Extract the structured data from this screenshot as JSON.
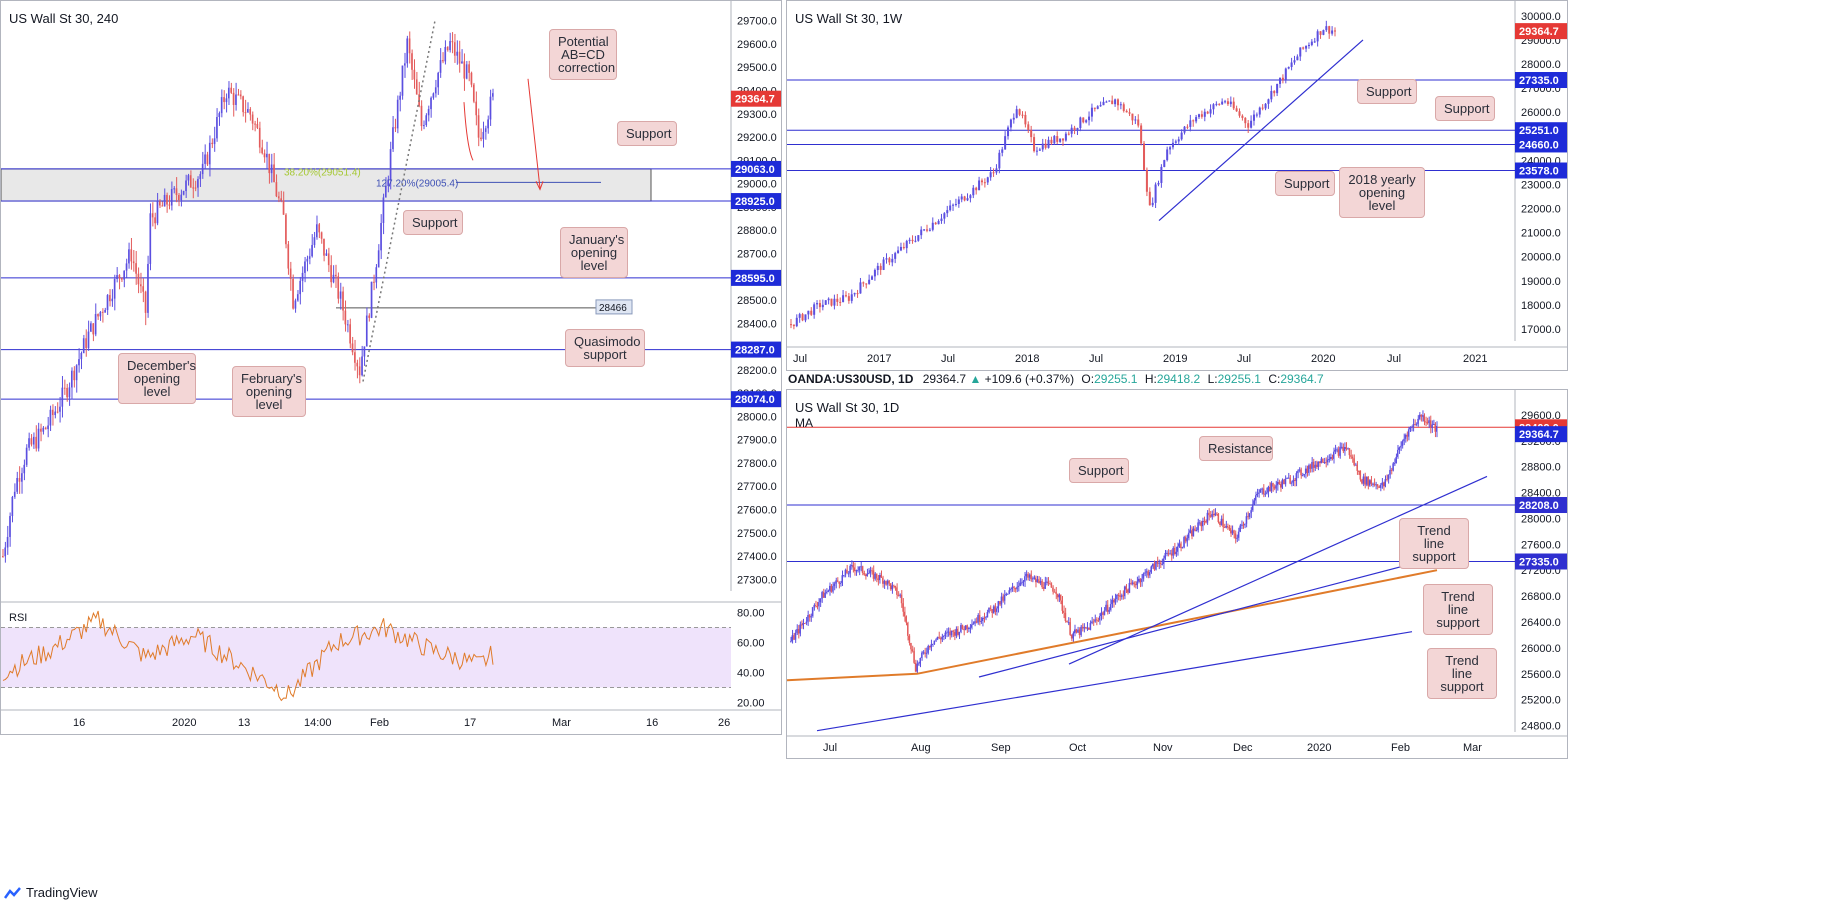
{
  "colors": {
    "candle_up": "#5b4fe0",
    "candle_down": "#e35b5b",
    "level": "#2f2fd0",
    "rsi": "#e07b2a",
    "ma": "#e07b2a",
    "last_price": "#e53935",
    "level_box": "#1e2bd8"
  },
  "panel_a": {
    "title": "US Wall St 30, 240",
    "yticks": [
      "29700.0",
      "29600.0",
      "29500.0",
      "29400.0",
      "29300.0",
      "29200.0",
      "29100.0",
      "29000.0",
      "28900.0",
      "28800.0",
      "28700.0",
      "28600.0",
      "28500.0",
      "28400.0",
      "28300.0",
      "28200.0",
      "28100.0",
      "28000.0",
      "27900.0",
      "27800.0",
      "27700.0",
      "27600.0",
      "27500.0",
      "27400.0",
      "27300.0"
    ],
    "xticks": [
      "16",
      "2020",
      "13",
      "14:00",
      "Feb",
      "17",
      "Mar",
      "16",
      "26"
    ],
    "levels": [
      {
        "label": "29063.0",
        "value": 29063.0
      },
      {
        "label": "28925.0",
        "value": 28925.0
      },
      {
        "label": "28595.0",
        "value": 28595.0
      },
      {
        "label": "28287.0",
        "value": 28287.0
      },
      {
        "label": "28074.0",
        "value": 28074.0
      }
    ],
    "last_price": "29364.7",
    "qm_label": "28466",
    "fib_38": "38.20%(29051.4)",
    "fib_127": "127.20%(29005.4)",
    "rsi_label": "RSI",
    "rsi_ticks": [
      "80.00",
      "60.00",
      "40.00",
      "20.00"
    ],
    "notes": {
      "abcd": "Potential AB=CD correction",
      "support_top": "Support",
      "support_mid": "Support",
      "january": "January's opening level",
      "quasimodo": "Quasimodo support",
      "december": "December's opening level",
      "february": "February's opening level"
    }
  },
  "panel_b": {
    "title": "US Wall St 30, 1W",
    "yticks": [
      "30000.0",
      "29000.0",
      "28000.0",
      "27000.0",
      "26000.0",
      "25000.0",
      "24000.0",
      "23000.0",
      "22000.0",
      "21000.0",
      "20000.0",
      "19000.0",
      "18000.0",
      "17000.0"
    ],
    "xticks": [
      "Jul",
      "2017",
      "Jul",
      "2018",
      "Jul",
      "2019",
      "Jul",
      "2020",
      "Jul",
      "2021"
    ],
    "levels": [
      {
        "label": "27335.0",
        "value": 27335.0
      },
      {
        "label": "25251.0",
        "value": 25251.0
      },
      {
        "label": "24660.0",
        "value": 24660.0
      },
      {
        "label": "23578.0",
        "value": 23578.0
      }
    ],
    "last_price": "29364.7",
    "notes": {
      "support1": "Support",
      "support2": "Support",
      "support3": "Support",
      "yearly": "2018 yearly opening level"
    }
  },
  "panel_c": {
    "symbol_line": {
      "symbol": "OANDA:US30USD, 1D",
      "price": "29364.7",
      "change": "+109.6 (+0.37%)",
      "o_label": "O:",
      "o": "29255.1",
      "h_label": "H:",
      "h": "29418.2",
      "l_label": "L:",
      "l": "29255.1",
      "c_label": "C:",
      "c": "29364.7"
    },
    "title": "US Wall St 30, 1D",
    "ma_label": "MA",
    "yticks": [
      "29600.0",
      "29200.0",
      "28800.0",
      "28400.0",
      "28000.0",
      "27600.0",
      "27200.0",
      "26800.0",
      "26400.0",
      "26000.0",
      "25600.0",
      "25200.0",
      "24800.0"
    ],
    "xticks": [
      "Jul",
      "Aug",
      "Sep",
      "Oct",
      "Nov",
      "Dec",
      "2020",
      "Feb",
      "Mar"
    ],
    "levels": [
      {
        "label": "29409.0",
        "value": 29409.0
      },
      {
        "label": "28208.0",
        "value": 28208.0
      },
      {
        "label": "27335.0",
        "value": 27335.0
      }
    ],
    "last_price": "29364.7",
    "notes": {
      "resistance": "Resistance",
      "support": "Support",
      "tl1": "Trend line support",
      "tl2": "Trend line support",
      "tl3": "Trend line support"
    }
  },
  "footer": {
    "brand": "TradingView"
  },
  "chart_data": [
    {
      "type": "candlestick",
      "title": "US Wall St 30, 240",
      "ylim": [
        27250,
        29750
      ],
      "last": 29364.7,
      "path": [
        [
          0,
          27400
        ],
        [
          5,
          27700
        ],
        [
          10,
          27850
        ],
        [
          18,
          27950
        ],
        [
          26,
          28100
        ],
        [
          36,
          28350
        ],
        [
          46,
          28550
        ],
        [
          54,
          28700
        ],
        [
          60,
          28450
        ],
        [
          62,
          28850
        ],
        [
          72,
          28950
        ],
        [
          84,
          29050
        ],
        [
          94,
          29400
        ],
        [
          104,
          29300
        ],
        [
          110,
          29150
        ],
        [
          118,
          28850
        ],
        [
          122,
          28500
        ],
        [
          132,
          28800
        ],
        [
          142,
          28500
        ],
        [
          150,
          28200
        ],
        [
          156,
          28600
        ],
        [
          164,
          29200
        ],
        [
          170,
          29600
        ],
        [
          176,
          29250
        ],
        [
          182,
          29450
        ],
        [
          188,
          29600
        ],
        [
          196,
          29450
        ],
        [
          200,
          29200
        ],
        [
          206,
          29364.7
        ]
      ],
      "rsi": [
        [
          0,
          40
        ],
        [
          20,
          55
        ],
        [
          40,
          75
        ],
        [
          60,
          50
        ],
        [
          80,
          65
        ],
        [
          100,
          45
        ],
        [
          120,
          25
        ],
        [
          140,
          60
        ],
        [
          160,
          70
        ],
        [
          180,
          55
        ],
        [
          200,
          45
        ],
        [
          206,
          52
        ]
      ]
    },
    {
      "type": "candlestick",
      "title": "US Wall St 30, 1W",
      "ylim": [
        16500,
        30200
      ],
      "last": 29364.7,
      "path": [
        [
          0,
          17200
        ],
        [
          10,
          18000
        ],
        [
          20,
          18300
        ],
        [
          30,
          19500
        ],
        [
          40,
          20500
        ],
        [
          50,
          21500
        ],
        [
          60,
          22500
        ],
        [
          70,
          23500
        ],
        [
          78,
          26300
        ],
        [
          84,
          24500
        ],
        [
          94,
          25000
        ],
        [
          104,
          26000
        ],
        [
          112,
          26500
        ],
        [
          120,
          25500
        ],
        [
          124,
          22000
        ],
        [
          130,
          24500
        ],
        [
          140,
          25800
        ],
        [
          150,
          26500
        ],
        [
          158,
          25500
        ],
        [
          166,
          26800
        ],
        [
          176,
          28500
        ],
        [
          184,
          29500
        ],
        [
          188,
          29364.7
        ]
      ]
    },
    {
      "type": "candlestick",
      "title": "US Wall St 30, 1D",
      "ylim": [
        24700,
        29800
      ],
      "last": 29364.7,
      "ma": [
        [
          0,
          25500
        ],
        [
          60,
          25600
        ],
        [
          120,
          26000
        ],
        [
          180,
          26400
        ],
        [
          240,
          26800
        ],
        [
          300,
          27200
        ]
      ],
      "path": [
        [
          0,
          26100
        ],
        [
          20,
          26800
        ],
        [
          40,
          27250
        ],
        [
          60,
          27050
        ],
        [
          70,
          26800
        ],
        [
          80,
          25700
        ],
        [
          90,
          26100
        ],
        [
          110,
          26300
        ],
        [
          130,
          26600
        ],
        [
          150,
          27100
        ],
        [
          170,
          26900
        ],
        [
          180,
          26200
        ],
        [
          190,
          26300
        ],
        [
          210,
          26800
        ],
        [
          230,
          27200
        ],
        [
          250,
          27600
        ],
        [
          270,
          28100
        ],
        [
          285,
          27700
        ],
        [
          300,
          28400
        ],
        [
          320,
          28600
        ],
        [
          340,
          28900
        ],
        [
          356,
          29100
        ],
        [
          366,
          28600
        ],
        [
          380,
          28500
        ],
        [
          394,
          29300
        ],
        [
          404,
          29600
        ],
        [
          414,
          29364.7
        ]
      ]
    }
  ]
}
